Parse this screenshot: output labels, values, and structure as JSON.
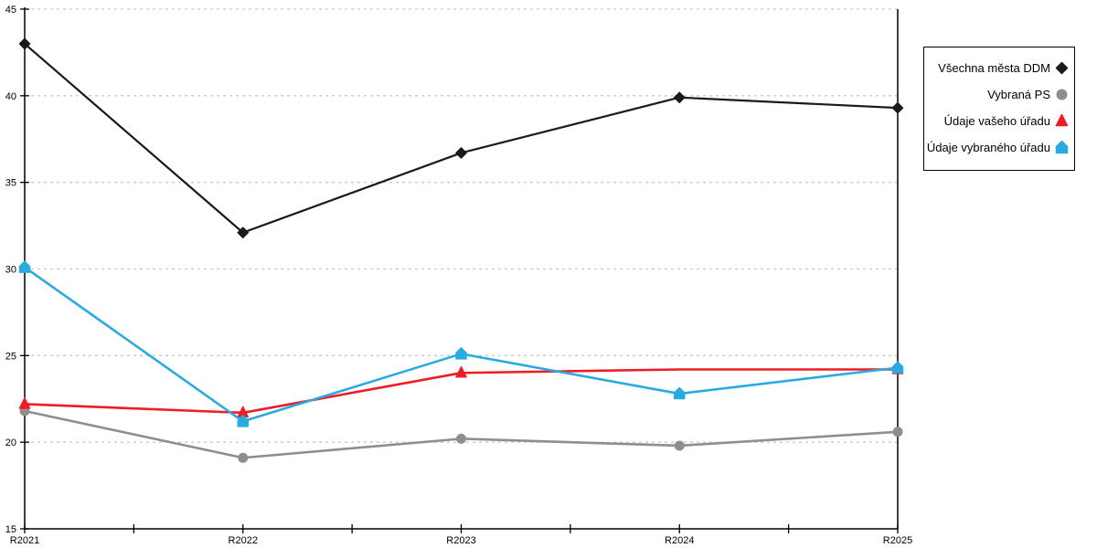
{
  "chart_data": {
    "type": "line",
    "title": "",
    "xlabel": "",
    "ylabel": "",
    "categories": [
      "R2021",
      "R2022",
      "R2023",
      "R2024",
      "R2025"
    ],
    "series": [
      {
        "name": "Všechna města DDM",
        "color": "#1a1a1a",
        "marker": "diamond",
        "line_width": 2.2,
        "values": [
          43.0,
          32.1,
          36.7,
          39.9,
          39.3
        ],
        "skip_markers": []
      },
      {
        "name": "Vybraná PS",
        "color": "#8e8e8e",
        "marker": "circle",
        "line_width": 2.6,
        "values": [
          21.8,
          19.1,
          20.2,
          19.8,
          20.6
        ],
        "skip_markers": []
      },
      {
        "name": "Údaje vašeho úřadu",
        "color": "#ee1c25",
        "marker": "triangle",
        "line_width": 2.6,
        "values": [
          22.2,
          21.7,
          24.0,
          24.2,
          24.2
        ],
        "skip_markers": [
          3
        ]
      },
      {
        "name": "Údaje vybraného úřadu",
        "color": "#29abe2",
        "marker": "house",
        "line_width": 2.6,
        "values": [
          30.1,
          21.2,
          25.1,
          22.8,
          24.3
        ],
        "skip_markers": []
      }
    ],
    "ylim": [
      15,
      45
    ],
    "ytick_step": 5,
    "ytick_labels": [
      "15",
      "20",
      "25",
      "30",
      "35",
      "40",
      "45"
    ],
    "grid": "horizontal-dashed",
    "grid_color": "#c9c9c9",
    "axis_color": "#000000",
    "legend_position": "top-right"
  }
}
